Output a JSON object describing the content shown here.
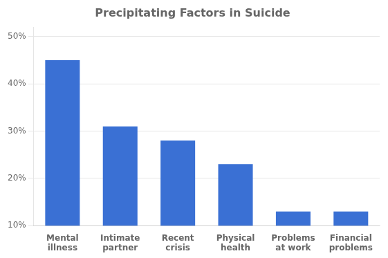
{
  "chart_data": {
    "type": "bar",
    "title": "Precipitating Factors in Suicide",
    "categories": [
      "Mental\nillness",
      "Intimate\npartner",
      "Recent\ncrisis",
      "Physical\nhealth",
      "Problems\nat work",
      "Financial\nproblems"
    ],
    "values": [
      0.45,
      0.31,
      0.28,
      0.23,
      0.13,
      0.13
    ],
    "color": "#3a70d4",
    "ylim": [
      0.1,
      0.52
    ],
    "yticks": [
      {
        "value": 0.1,
        "label": "10%"
      },
      {
        "value": 0.2,
        "label": "20%"
      },
      {
        "value": 0.3,
        "label": "30%"
      },
      {
        "value": 0.4,
        "label": "40%"
      },
      {
        "value": 0.5,
        "label": "50%"
      }
    ],
    "grid": true
  }
}
